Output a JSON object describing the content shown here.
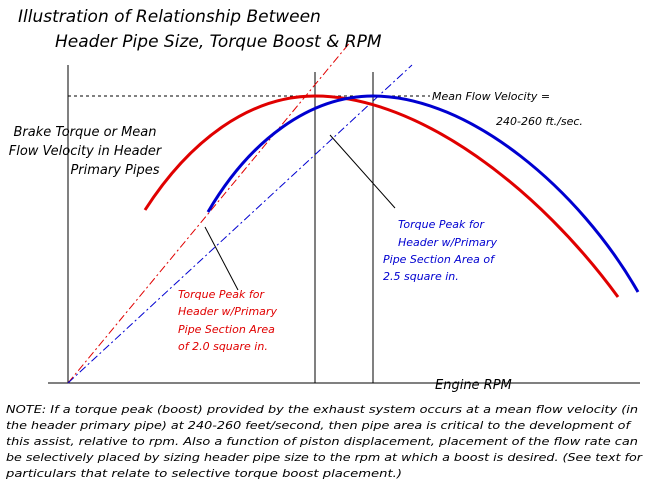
{
  "title": [
    "Illustration of Relationship Between",
    "Header Pipe Size, Torque Boost & RPM"
  ],
  "y_axis_label": [
    "Brake Torque or Mean",
    "Flow Velocity in Header",
    "Primary Pipes"
  ],
  "velocity_label": [
    "Mean Flow Velocity =",
    "240-260 ft./sec."
  ],
  "blue_annotation": [
    "Torque Peak for",
    "Header w/Primary",
    "Pipe Section Area of",
    "2.5 square in."
  ],
  "red_annotation": [
    "Torque Peak for",
    "Header w/Primary",
    "Pipe Section Area",
    "of 2.0 square in."
  ],
  "x_axis_label": "Engine RPM",
  "note": [
    "NOTE: If a torque peak (boost) provided by the exhaust system occurs at a mean flow velocity (in",
    "the header primary pipe) at 240-260 feet/second, then pipe area is critical to the development of",
    "this assist, relative to rpm.  Also a function of piston displacement, placement of the flow rate can",
    "be selectively placed by sizing header pipe size to the rpm at which a boost is desired. (See text for",
    "particulars that relate to selective torque boost placement.)"
  ]
}
